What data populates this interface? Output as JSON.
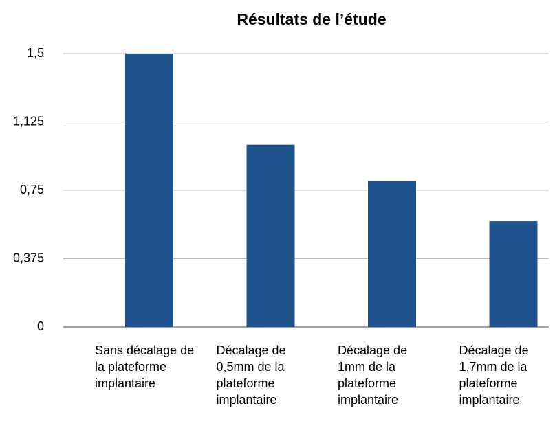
{
  "chart_data": {
    "type": "bar",
    "title": "Résultats de l’étude",
    "categories": [
      "Sans décalage de la plateforme implantaire",
      "Décalage de 0,5mm de la plateforme implantaire",
      "Décalage de 1mm de la plateforme implantaire",
      "Décalage de 1,7mm de la plateforme implantaire"
    ],
    "values": [
      1.5,
      1.0,
      0.8,
      0.58
    ],
    "color": "#1f538e",
    "ylim": [
      0,
      1.5
    ],
    "yticks": [
      0,
      {
        "value": 0.375,
        "label": "0,375"
      },
      {
        "value": 0.75,
        "label": "0,75"
      },
      {
        "value": 1.125,
        "label": "1,125"
      },
      {
        "value": 1.5,
        "label": "1,5"
      }
    ],
    "grid": true
  }
}
